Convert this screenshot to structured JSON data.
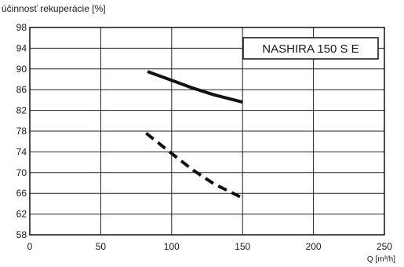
{
  "chart_data": {
    "type": "line",
    "title": "",
    "ylabel": "účinnosť rekuperácie [%]",
    "xlabel": "Q [m³/h]",
    "xlim": [
      0,
      250
    ],
    "ylim": [
      58,
      98
    ],
    "xticks": [
      0,
      50,
      100,
      150,
      200,
      250
    ],
    "yticks": [
      58,
      62,
      66,
      70,
      74,
      78,
      82,
      86,
      90,
      94,
      98
    ],
    "grid": true,
    "legend": {
      "text": "NASHIRA 150 S E",
      "placement": "top-right"
    },
    "series": [
      {
        "line_style": "solid",
        "color": "#111111",
        "x": [
          83,
          100,
          115,
          130,
          150
        ],
        "y": [
          89.5,
          87.8,
          86.3,
          85.0,
          83.6
        ]
      },
      {
        "line_style": "dashed",
        "color": "#111111",
        "x": [
          82,
          100,
          115,
          130,
          150
        ],
        "y": [
          77.6,
          73.7,
          70.5,
          67.8,
          65.1
        ]
      }
    ]
  }
}
